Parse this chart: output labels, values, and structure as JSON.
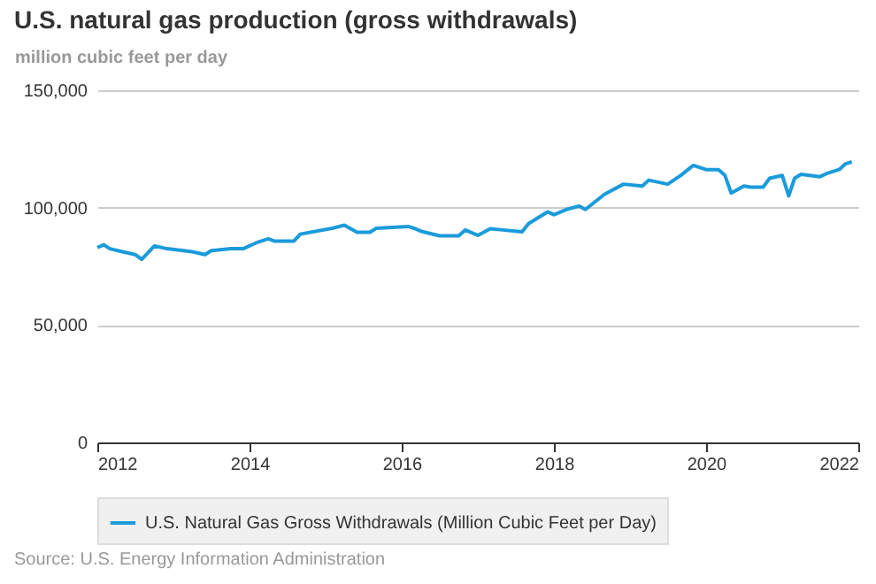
{
  "chart_data": {
    "type": "line",
    "title": "U.S. natural gas production (gross withdrawals)",
    "ylabel": "million cubic feet per day",
    "x": [
      "2012-01",
      "2012-02",
      "2012-03",
      "2012-05",
      "2012-07",
      "2012-08",
      "2012-10",
      "2012-12",
      "2013-04",
      "2013-06",
      "2013-07",
      "2013-10",
      "2013-12",
      "2014-02",
      "2014-04",
      "2014-05",
      "2014-08",
      "2014-09",
      "2015-02",
      "2015-04",
      "2015-06",
      "2015-08",
      "2015-09",
      "2016-02",
      "2016-03",
      "2016-04",
      "2016-07",
      "2016-10",
      "2016-11",
      "2017-01",
      "2017-03",
      "2017-05",
      "2017-08",
      "2017-09",
      "2017-12",
      "2018-01",
      "2018-03",
      "2018-05",
      "2018-06",
      "2018-09",
      "2018-12",
      "2019-03",
      "2019-04",
      "2019-07",
      "2019-09",
      "2019-11",
      "2020-01",
      "2020-03",
      "2020-04",
      "2020-05",
      "2020-07",
      "2020-08",
      "2020-10",
      "2020-11",
      "2021-01",
      "2021-02",
      "2021-03",
      "2021-04",
      "2021-07",
      "2021-08",
      "2021-10",
      "2021-11",
      "2021-12"
    ],
    "series": [
      {
        "name": "U.S. Natural Gas Gross Withdrawals (Million Cubic Feet per Day)",
        "color": "#1a9bdb",
        "values": [
          83000,
          84200,
          82500,
          81200,
          80000,
          78000,
          83700,
          82500,
          81200,
          80000,
          81700,
          82500,
          82500,
          85000,
          86700,
          85700,
          85700,
          88700,
          91200,
          92500,
          89500,
          89500,
          91200,
          92000,
          91200,
          90000,
          88000,
          88000,
          90500,
          88200,
          91000,
          90500,
          89700,
          93200,
          98200,
          97000,
          99200,
          100700,
          99200,
          105700,
          110000,
          109200,
          111700,
          110000,
          113700,
          118000,
          116200,
          116200,
          113700,
          106200,
          109200,
          108700,
          108700,
          112500,
          113700,
          105000,
          112500,
          114200,
          113200,
          114500,
          116200,
          118700,
          119500
        ]
      }
    ],
    "xlim": [
      "2012-01",
      "2022-01"
    ],
    "xticks": [
      "2012",
      "2014",
      "2016",
      "2018",
      "2020",
      "2022"
    ],
    "ylim": [
      0,
      150000
    ],
    "yticks": [
      0,
      {
        "value": 50000,
        "label": "50,000"
      },
      {
        "value": 100000,
        "label": "100,000"
      },
      {
        "value": 150000,
        "label": "150,000"
      }
    ],
    "grid": "y",
    "legend": "bottom",
    "marker": "none",
    "line_style": "solid",
    "annotations": [
      "Source: U.S. Energy Information Administration"
    ]
  }
}
